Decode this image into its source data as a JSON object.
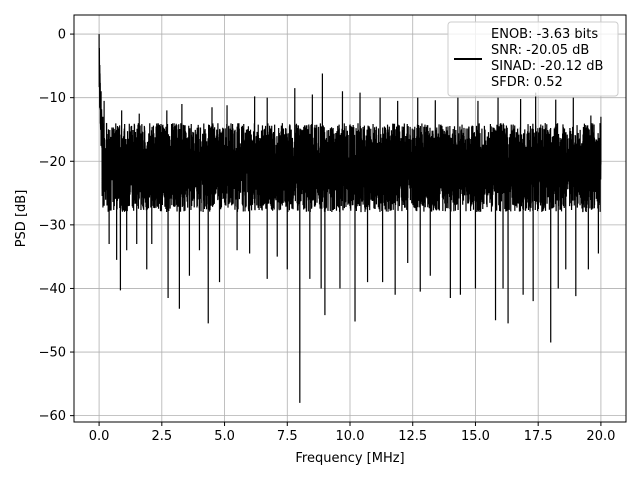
{
  "chart_data": {
    "type": "line",
    "title": "",
    "xlabel": "Frequency [MHz]",
    "ylabel": "PSD [dB]",
    "xlim": [
      -1.0,
      21.0
    ],
    "ylim": [
      -61.0,
      3.0
    ],
    "xticks": [
      0.0,
      2.5,
      5.0,
      7.5,
      10.0,
      12.5,
      15.0,
      17.5,
      20.0
    ],
    "xtick_labels": [
      "0.0",
      "2.5",
      "5.0",
      "7.5",
      "10.0",
      "12.5",
      "15.0",
      "17.5",
      "20.0"
    ],
    "yticks": [
      0,
      -10,
      -20,
      -30,
      -40,
      -50,
      -60
    ],
    "ytick_labels": [
      "0",
      "−10",
      "−20",
      "−30",
      "−40",
      "−50",
      "−60"
    ],
    "grid": true,
    "legend_placement": "top-right",
    "line_color": "#000000",
    "series": [
      {
        "legend_lines": [
          "ENOB: -3.63 bits",
          "SNR: -20.05 dB",
          "SINAD: -20.12 dB",
          "SFDR: 0.52"
        ],
        "noise_band_db": [
          -28,
          -12
        ],
        "points": [
          [
            0.0,
            0.0
          ],
          [
            0.02,
            -6.5
          ],
          [
            0.05,
            -12.0
          ],
          [
            0.08,
            -9.0
          ],
          [
            0.1,
            -17.5
          ],
          [
            0.12,
            -24.0
          ],
          [
            0.15,
            -13.0
          ],
          [
            0.2,
            -27.0
          ],
          [
            0.3,
            -14.0
          ],
          [
            0.4,
            -33.0
          ],
          [
            0.6,
            -15.0
          ],
          [
            0.7,
            -35.5
          ],
          [
            0.85,
            -40.3
          ],
          [
            1.1,
            -34.0
          ],
          [
            1.5,
            -33.0
          ],
          [
            1.9,
            -37.0
          ],
          [
            2.1,
            -33.0
          ],
          [
            2.75,
            -41.5
          ],
          [
            3.2,
            -43.2
          ],
          [
            3.6,
            -38.0
          ],
          [
            4.0,
            -34.0
          ],
          [
            4.35,
            -45.5
          ],
          [
            4.8,
            -39.0
          ],
          [
            5.5,
            -34.0
          ],
          [
            6.0,
            -34.5
          ],
          [
            6.7,
            -38.5
          ],
          [
            7.1,
            -35.0
          ],
          [
            7.5,
            -37.0
          ],
          [
            8.0,
            -58.0
          ],
          [
            8.4,
            -38.5
          ],
          [
            8.85,
            -40.0
          ],
          [
            9.0,
            -44.2
          ],
          [
            9.6,
            -40.0
          ],
          [
            10.2,
            -45.2
          ],
          [
            10.7,
            -39.0
          ],
          [
            11.3,
            -39.0
          ],
          [
            11.8,
            -41.0
          ],
          [
            12.3,
            -36.0
          ],
          [
            12.8,
            -40.5
          ],
          [
            13.2,
            -38.0
          ],
          [
            14.0,
            -41.5
          ],
          [
            14.4,
            -41.0
          ],
          [
            15.0,
            -40.0
          ],
          [
            15.8,
            -45.0
          ],
          [
            16.1,
            -40.0
          ],
          [
            16.3,
            -45.5
          ],
          [
            16.9,
            -41.0
          ],
          [
            17.3,
            -42.0
          ],
          [
            18.0,
            -48.5
          ],
          [
            18.3,
            -40.0
          ],
          [
            18.6,
            -37.0
          ],
          [
            19.0,
            -41.2
          ],
          [
            19.5,
            -37.0
          ],
          [
            19.9,
            -34.5
          ],
          [
            0.2,
            -10.5
          ],
          [
            0.9,
            -12.0
          ],
          [
            1.6,
            -12.5
          ],
          [
            2.7,
            -12.0
          ],
          [
            3.3,
            -11.0
          ],
          [
            4.5,
            -11.5
          ],
          [
            5.1,
            -11.2
          ],
          [
            6.2,
            -9.8
          ],
          [
            6.7,
            -10.0
          ],
          [
            7.8,
            -8.5
          ],
          [
            8.5,
            -9.5
          ],
          [
            8.9,
            -6.2
          ],
          [
            9.7,
            -9.0
          ],
          [
            10.4,
            -9.2
          ],
          [
            11.2,
            -10.0
          ],
          [
            11.9,
            -10.5
          ],
          [
            12.7,
            -10.0
          ],
          [
            13.4,
            -10.4
          ],
          [
            14.3,
            -10.0
          ],
          [
            15.1,
            -10.5
          ],
          [
            15.9,
            -10.0
          ],
          [
            16.8,
            -10.2
          ],
          [
            17.4,
            -9.2
          ],
          [
            18.2,
            -10.3
          ],
          [
            18.9,
            -10.0
          ],
          [
            19.6,
            -12.8
          ],
          [
            20.0,
            -13.0
          ]
        ]
      }
    ]
  }
}
